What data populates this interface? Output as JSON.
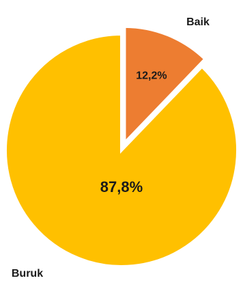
{
  "chart_data": {
    "type": "pie",
    "slices": [
      {
        "label": "Baik",
        "value": 12.2,
        "value_label": "12,2%",
        "color": "#ed7d31",
        "exploded": true
      },
      {
        "label": "Buruk",
        "value": 87.8,
        "value_label": "87,8%",
        "color": "#ffc000",
        "exploded": false
      }
    ],
    "start_angle_deg": 0,
    "direction": "clockwise",
    "slice_border_color": "#ffffff",
    "label_color": "#1a1a1a",
    "legend": "none"
  }
}
